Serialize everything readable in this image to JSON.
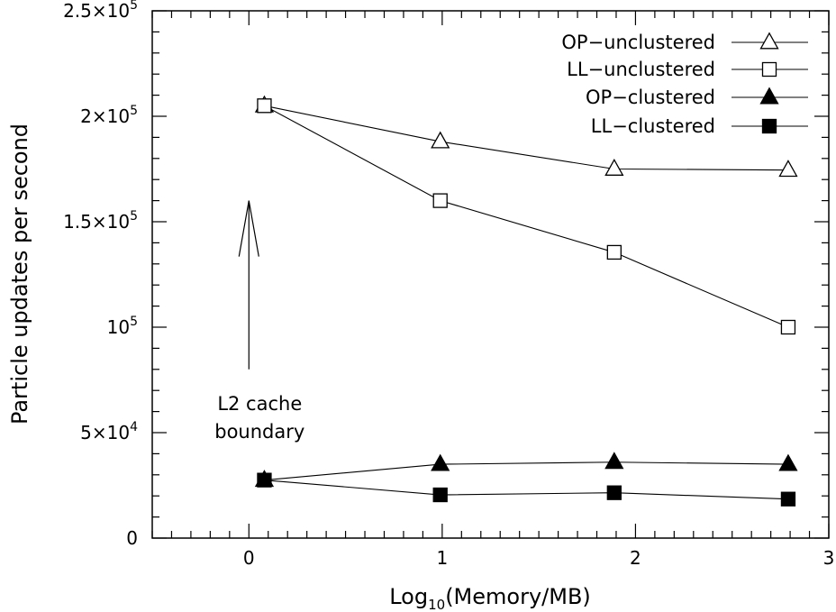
{
  "chart_data": {
    "type": "line",
    "title": "",
    "xlabel": {
      "pre": "Log",
      "sub": "10",
      "post": "(Memory/MB)"
    },
    "ylabel": "Particle updates per second",
    "xlim": [
      -0.5,
      3
    ],
    "ylim": [
      0,
      250000
    ],
    "grid": false,
    "legend_position": "top-right",
    "x_ticks": [
      {
        "value": 0,
        "label": "0"
      },
      {
        "value": 1,
        "label": "1"
      },
      {
        "value": 2,
        "label": "2"
      },
      {
        "value": 3,
        "label": "3"
      }
    ],
    "y_ticks": [
      {
        "value": 0,
        "mant": "0",
        "exp": ""
      },
      {
        "value": 50000,
        "mant": "5×10",
        "exp": "4"
      },
      {
        "value": 100000,
        "mant": "10",
        "exp": "5"
      },
      {
        "value": 150000,
        "mant": "1.5×10",
        "exp": "5"
      },
      {
        "value": 200000,
        "mant": "2×10",
        "exp": "5"
      },
      {
        "value": 250000,
        "mant": "2.5×10",
        "exp": "5"
      }
    ],
    "series": [
      {
        "name": "OP−unclustered",
        "marker": "triangle-open",
        "x": [
          0.08,
          0.99,
          1.89,
          2.79
        ],
        "y": [
          205000,
          188000,
          175000,
          174500
        ]
      },
      {
        "name": "LL−unclustered",
        "marker": "square-open",
        "x": [
          0.08,
          0.99,
          1.89,
          2.79
        ],
        "y": [
          205000,
          160000,
          135500,
          100000
        ]
      },
      {
        "name": "OP−clustered",
        "marker": "triangle-filled",
        "x": [
          0.08,
          0.99,
          1.89,
          2.79
        ],
        "y": [
          27500,
          35000,
          36000,
          35000
        ]
      },
      {
        "name": "LL−clustered",
        "marker": "square-filled",
        "x": [
          0.08,
          0.99,
          1.89,
          2.79
        ],
        "y": [
          27500,
          20500,
          21500,
          18500
        ]
      }
    ],
    "annotation": {
      "lines": [
        "L2 cache",
        "boundary"
      ],
      "arrow_x": 0.0,
      "arrow_from_y": 80000,
      "arrow_to_y": 160000
    }
  }
}
